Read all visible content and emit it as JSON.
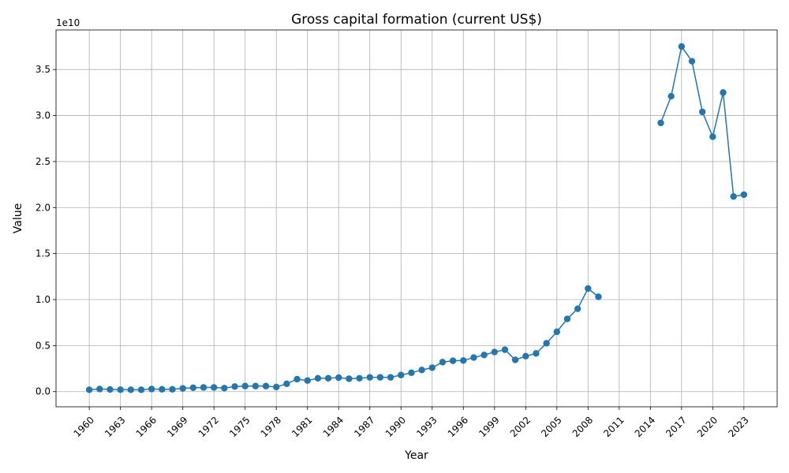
{
  "chart_data": {
    "type": "line",
    "title": "Gross capital formation (current US$)",
    "xlabel": "Year",
    "ylabel": "Value",
    "y_offset_text": "1e10",
    "y_scale_factor": 10000000000,
    "grid": true,
    "xlim": [
      1956.8,
      2026.2
    ],
    "ylim": [
      -1650000000,
      39300000000
    ],
    "x_ticks": [
      1960,
      1963,
      1966,
      1969,
      1972,
      1975,
      1978,
      1981,
      1984,
      1987,
      1990,
      1993,
      1996,
      1999,
      2002,
      2005,
      2008,
      2011,
      2014,
      2017,
      2020,
      2023
    ],
    "y_ticks": [
      0,
      5000000000,
      10000000000,
      15000000000,
      20000000000,
      25000000000,
      30000000000,
      35000000000
    ],
    "y_tick_labels": [
      "0.0",
      "0.5",
      "1.0",
      "1.5",
      "2.0",
      "2.5",
      "3.0",
      "3.5"
    ],
    "series": [
      {
        "color": "#1f77b4",
        "marker": "circle",
        "x": [
          1960,
          1961,
          1962,
          1963,
          1964,
          1965,
          1966,
          1967,
          1968,
          1969,
          1970,
          1971,
          1972,
          1973,
          1974,
          1975,
          1976,
          1977,
          1978,
          1979,
          1980,
          1981,
          1982,
          1983,
          1984,
          1985,
          1986,
          1987,
          1988,
          1989,
          1990,
          1991,
          1992,
          1993,
          1994,
          1995,
          1996,
          1997,
          1998,
          1999,
          2000,
          2001,
          2002,
          2003,
          2004,
          2005,
          2006,
          2007,
          2008,
          2009,
          2010,
          2011,
          2012,
          2013,
          2014,
          2015,
          2016,
          2017,
          2018,
          2019,
          2020,
          2021,
          2022,
          2023
        ],
        "values": [
          200000000,
          280000000,
          230000000,
          210000000,
          200000000,
          200000000,
          280000000,
          250000000,
          250000000,
          350000000,
          420000000,
          450000000,
          450000000,
          380000000,
          550000000,
          600000000,
          600000000,
          600000000,
          500000000,
          850000000,
          1350000000,
          1200000000,
          1450000000,
          1450000000,
          1520000000,
          1400000000,
          1450000000,
          1550000000,
          1550000000,
          1550000000,
          1800000000,
          2050000000,
          2350000000,
          2600000000,
          3200000000,
          3350000000,
          3380000000,
          3700000000,
          3980000000,
          4300000000,
          4550000000,
          3450000000,
          3850000000,
          4150000000,
          5250000000,
          6500000000,
          7900000000,
          9000000000,
          11200000000,
          10300000000,
          null,
          null,
          null,
          null,
          null,
          29200000000,
          32100000000,
          37500000000,
          35900000000,
          30400000000,
          27700000000,
          32500000000,
          21200000000,
          21400000000
        ]
      }
    ]
  }
}
